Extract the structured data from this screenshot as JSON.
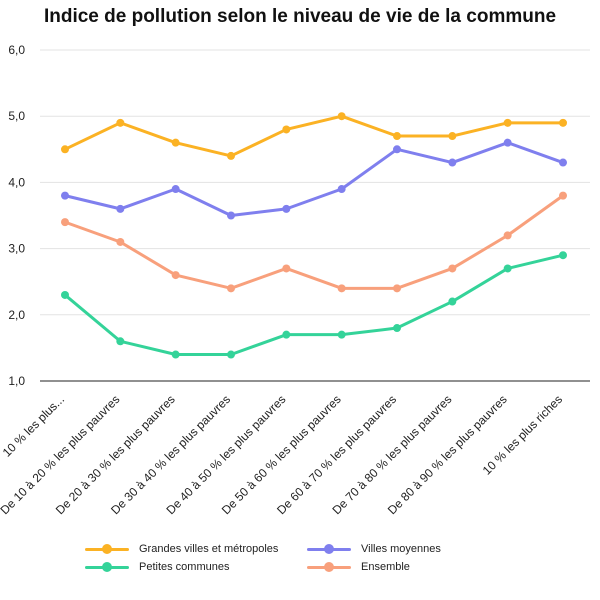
{
  "chart_data": {
    "type": "line",
    "title": "Indice de pollution selon le niveau de vie de la commune",
    "categories": [
      "10 % les plus...",
      "De 10 à 20 % les plus pauvres",
      "De 20 à 30 % les plus pauvres",
      "De 30 à 40 % les plus pauvres",
      "De 40 à 50 % les plus pauvres",
      "De 50 à 60 % les plus pauvres",
      "De 60 à 70 % les plus pauvres",
      "De 70 à 80 % les plus pauvres",
      "De 80 à 90 % les plus pauvres",
      "10 % les plus riches"
    ],
    "series": [
      {
        "name": "Grandes villes et métropoles",
        "color": "#FBB224",
        "values": [
          4.5,
          4.9,
          4.6,
          4.4,
          4.8,
          5.0,
          4.7,
          4.7,
          4.9,
          4.9
        ]
      },
      {
        "name": "Villes moyennes",
        "color": "#7F7FEE",
        "values": [
          3.8,
          3.6,
          3.9,
          3.5,
          3.6,
          3.9,
          4.5,
          4.3,
          4.6,
          4.3
        ]
      },
      {
        "name": "Ensemble",
        "color": "#F8A07C",
        "values": [
          3.4,
          3.1,
          2.6,
          2.4,
          2.7,
          2.4,
          2.4,
          2.7,
          3.2,
          3.8
        ]
      },
      {
        "name": "Petites communes",
        "color": "#34D399",
        "values": [
          2.3,
          1.6,
          1.4,
          1.4,
          1.7,
          1.7,
          1.8,
          2.2,
          2.7,
          2.9
        ]
      }
    ],
    "ylim": [
      1.0,
      6.0
    ],
    "yticks": [
      "1,0",
      "2,0",
      "3,0",
      "4,0",
      "5,0",
      "6,0"
    ],
    "grid": true,
    "legend_position": "bottom",
    "legend_order": [
      "Grandes villes et métropoles",
      "Villes moyennes",
      "Petites communes",
      "Ensemble"
    ]
  }
}
